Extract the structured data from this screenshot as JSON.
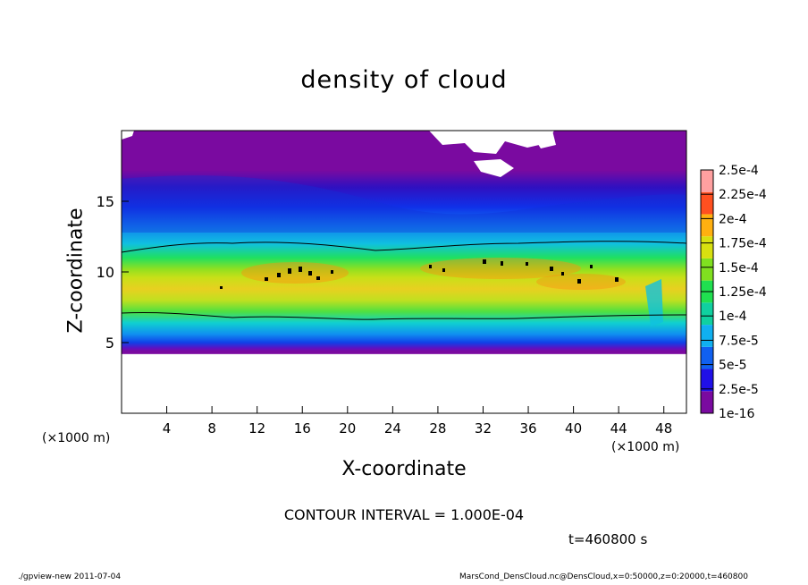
{
  "chart_data": {
    "type": "heatmap",
    "title": "density of cloud",
    "xlabel": "X-coordinate",
    "ylabel": "Z-coordinate",
    "x_unit": "(×1000 m)",
    "x_unit_right": "(×1000 m)",
    "xlim": [
      0,
      50
    ],
    "ylim": [
      0,
      20
    ],
    "x_ticks": [
      4,
      8,
      12,
      16,
      20,
      24,
      28,
      32,
      36,
      40,
      44,
      48
    ],
    "y_ticks": [
      5,
      10,
      15
    ],
    "colorbar": {
      "labels": [
        "1e-16",
        "2.5e-5",
        "5e-5",
        "7.5e-5",
        "1e-4",
        "1.25e-4",
        "1.5e-4",
        "1.75e-4",
        "2e-4",
        "2.25e-4",
        "2.5e-4"
      ],
      "colors": [
        "#7a0aa0",
        "#2010e8",
        "#1060f0",
        "#10b0f0",
        "#10d0a0",
        "#20e050",
        "#80e020",
        "#d8e010",
        "#ffb010",
        "#ff5020",
        "#ffa0a0"
      ]
    },
    "contour_levels": [
      0.0001,
      0.0002
    ],
    "field_description_z_bands": [
      {
        "z": [
          4.8,
          5.3
        ],
        "value": 1e-16
      },
      {
        "z": [
          5.3,
          6.5
        ],
        "value": 3e-05
      },
      {
        "z": [
          6.5,
          7.2
        ],
        "value": 8e-05
      },
      {
        "z": [
          7.2,
          8.2
        ],
        "value": 0.00013
      },
      {
        "z": [
          8.2,
          10.8
        ],
        "value": 0.00017
      },
      {
        "z": [
          10.8,
          11.8
        ],
        "value": 0.00013
      },
      {
        "z": [
          11.8,
          13
        ],
        "value": 8e-05
      },
      {
        "z": [
          13,
          15.5
        ],
        "value": 4e-05
      },
      {
        "z": [
          15.5,
          20
        ],
        "value": 1e-16
      }
    ]
  },
  "annotations": {
    "contour_interval": "CONTOUR INTERVAL = 1.000E-04",
    "time": "t=460800 s",
    "footer_left": "./gpview-new   2011-07-04",
    "footer_right": "MarsCond_DensCloud.nc@DensCloud,x=0:50000,z=0:20000,t=460800"
  }
}
